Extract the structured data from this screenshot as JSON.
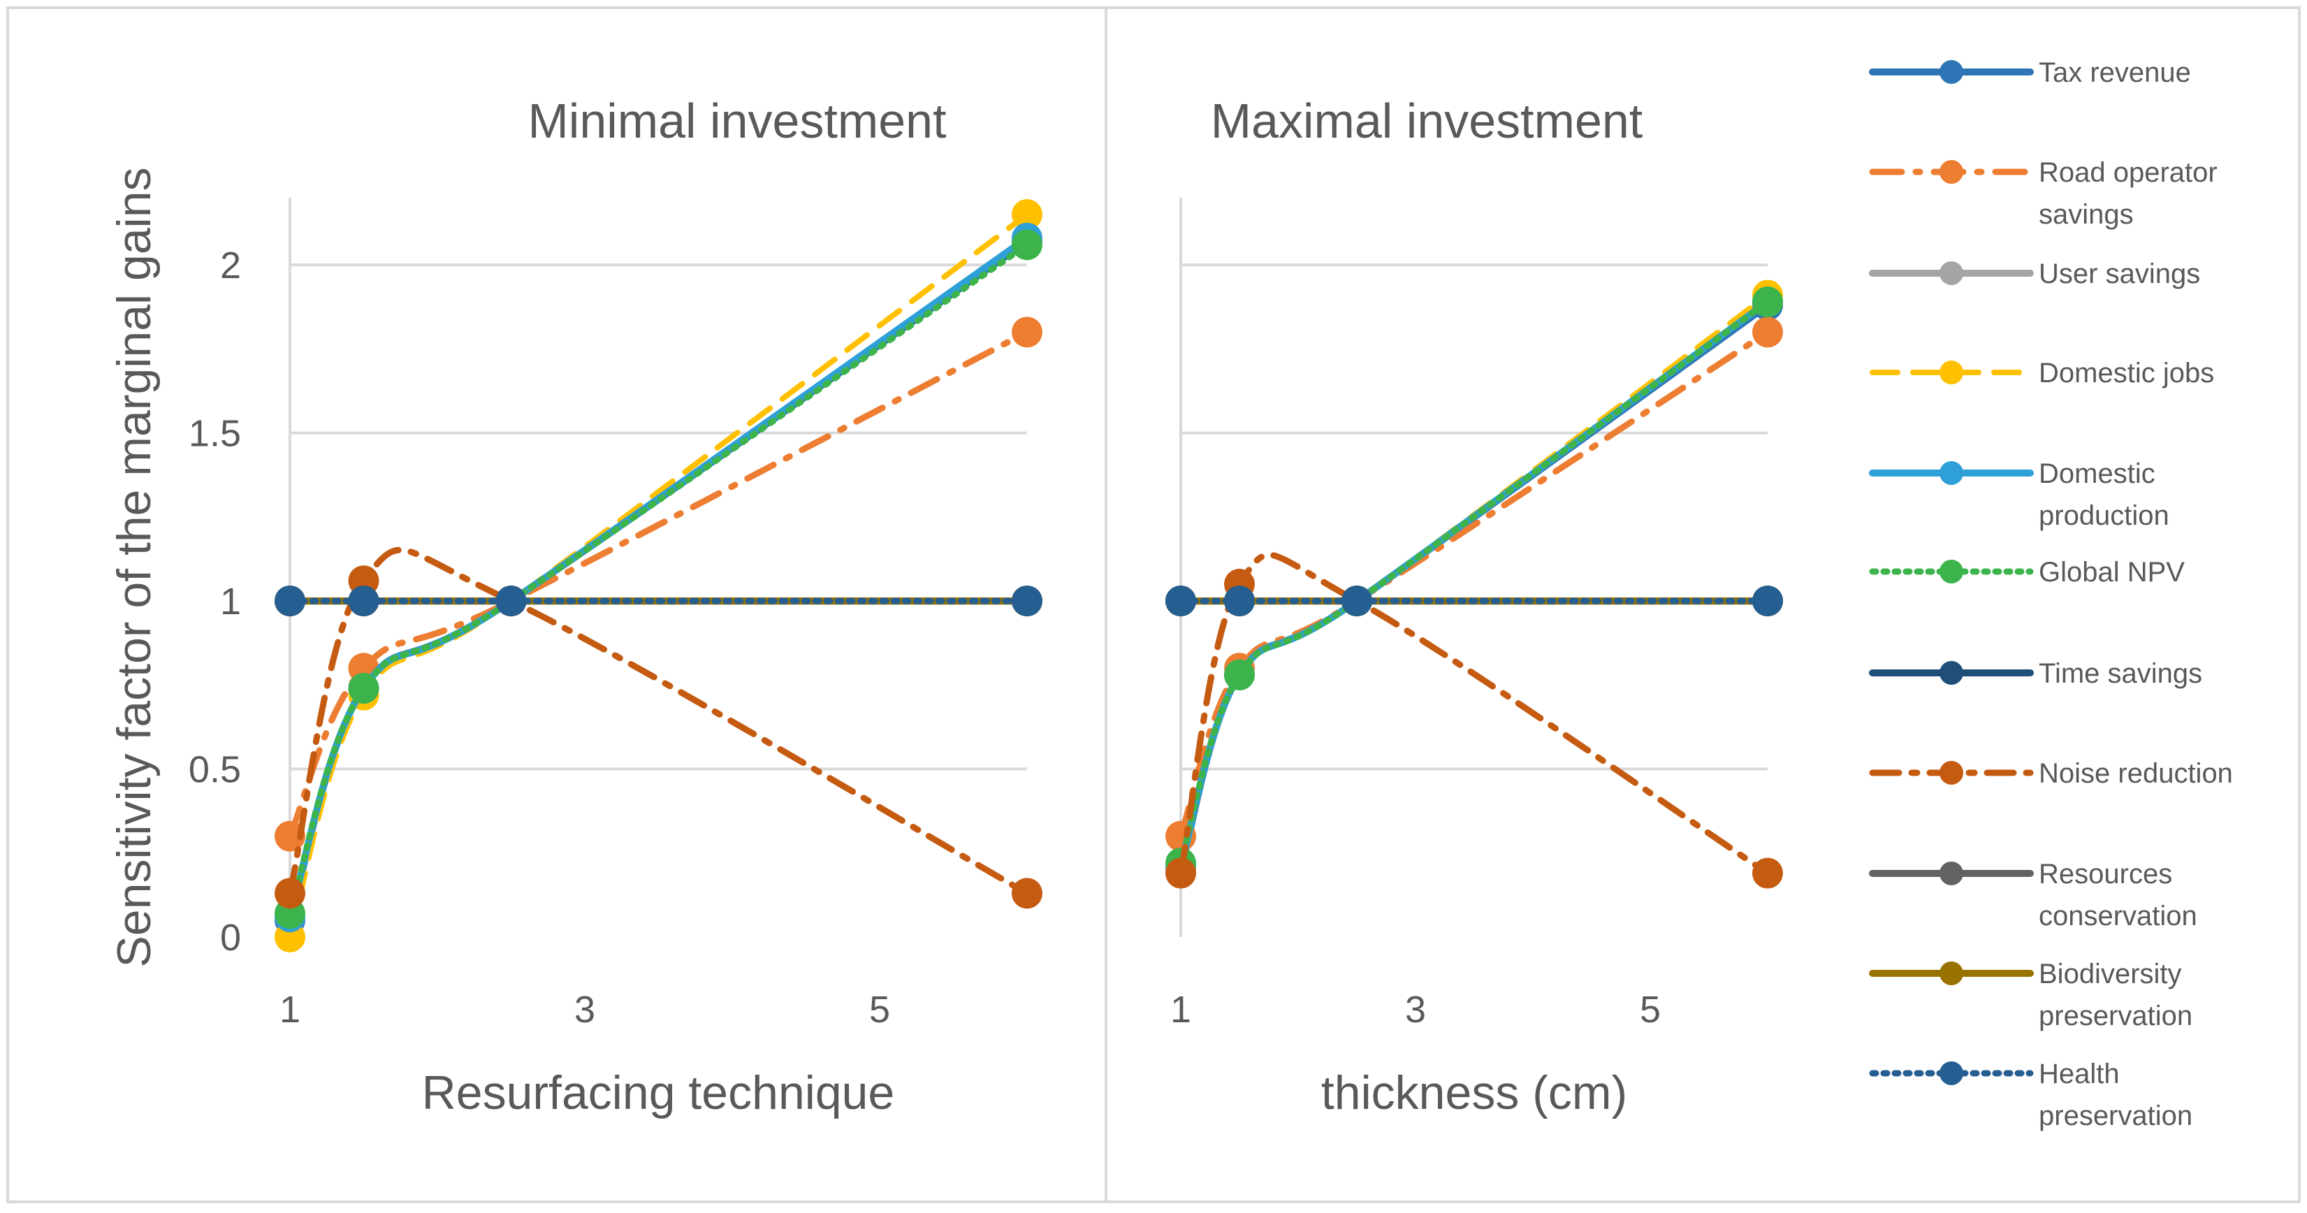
{
  "chart_data": {
    "type": "line",
    "ylabel": "Sensitivity factor of the marginal gains",
    "panels": [
      {
        "title": "Minimal investment",
        "xlabel": "Resurfacing technique",
        "x": [
          1,
          1.5,
          2.5,
          6
        ],
        "xlim": [
          1,
          6
        ],
        "xticks": [
          1,
          3,
          5
        ],
        "ylim": [
          0,
          2.2
        ],
        "yticks": [
          0,
          0.5,
          1,
          1.5,
          2
        ],
        "series": [
          {
            "name": "Tax revenue",
            "values": [
              0.05,
              0.74,
              1.0,
              2.07
            ]
          },
          {
            "name": "Road operator savings",
            "values": [
              0.3,
              0.8,
              1.0,
              1.8
            ]
          },
          {
            "name": "User savings",
            "values": [
              1.0,
              1.0,
              1.0,
              1.0
            ]
          },
          {
            "name": "Domestic jobs",
            "values": [
              0.0,
              0.72,
              1.0,
              2.15
            ]
          },
          {
            "name": "Domestic production",
            "values": [
              0.06,
              0.74,
              1.0,
              2.08
            ]
          },
          {
            "name": "Global NPV",
            "values": [
              0.07,
              0.74,
              1.0,
              2.06
            ]
          },
          {
            "name": "Time savings",
            "values": [
              1.0,
              1.0,
              1.0,
              1.0
            ]
          },
          {
            "name": "Noise reduction",
            "values": [
              0.13,
              1.06,
              1.0,
              0.13
            ]
          },
          {
            "name": "Resources conservation",
            "values": [
              1.0,
              1.0,
              1.0,
              1.0
            ]
          },
          {
            "name": "Biodiversity preservation",
            "values": [
              1.0,
              1.0,
              1.0,
              1.0
            ]
          },
          {
            "name": "Health preservation",
            "values": [
              1.0,
              1.0,
              1.0,
              1.0
            ]
          }
        ]
      },
      {
        "title": "Maximal investment",
        "xlabel": "thickness (cm)",
        "x": [
          1,
          1.5,
          2.5,
          6
        ],
        "xlim": [
          1,
          6
        ],
        "xticks": [
          1,
          3,
          5
        ],
        "ylim": [
          0,
          2.2
        ],
        "yticks": [
          0,
          0.5,
          1,
          1.5,
          2
        ],
        "series": [
          {
            "name": "Tax revenue",
            "values": [
              0.2,
              0.78,
              1.0,
              1.88
            ]
          },
          {
            "name": "Road operator savings",
            "values": [
              0.3,
              0.8,
              1.0,
              1.8
            ]
          },
          {
            "name": "User savings",
            "values": [
              1.0,
              1.0,
              1.0,
              1.0
            ]
          },
          {
            "name": "Domestic jobs",
            "values": [
              0.2,
              0.78,
              1.0,
              1.91
            ]
          },
          {
            "name": "Domestic production",
            "values": [
              0.21,
              0.78,
              1.0,
              1.89
            ]
          },
          {
            "name": "Global NPV",
            "values": [
              0.22,
              0.78,
              1.0,
              1.89
            ]
          },
          {
            "name": "Time savings",
            "values": [
              1.0,
              1.0,
              1.0,
              1.0
            ]
          },
          {
            "name": "Noise reduction",
            "values": [
              0.19,
              1.05,
              1.0,
              0.19
            ]
          },
          {
            "name": "Resources conservation",
            "values": [
              1.0,
              1.0,
              1.0,
              1.0
            ]
          },
          {
            "name": "Biodiversity preservation",
            "values": [
              1.0,
              1.0,
              1.0,
              1.0
            ]
          },
          {
            "name": "Health preservation",
            "values": [
              1.0,
              1.0,
              1.0,
              1.0
            ]
          }
        ]
      }
    ],
    "legend": {
      "placement": "right",
      "entries": [
        {
          "label": "Tax revenue",
          "color": "#2E75B6",
          "style": "solid"
        },
        {
          "label": "Road operator savings",
          "color": "#ED7D31",
          "style": "dashdot"
        },
        {
          "label": "User savings",
          "color": "#A5A5A5",
          "style": "solid"
        },
        {
          "label": "Domestic jobs",
          "color": "#FFC000",
          "style": "dashed"
        },
        {
          "label": "Domestic production",
          "color": "#2F9FD8",
          "style": "solid"
        },
        {
          "label": "Global NPV",
          "color": "#3CB44B",
          "style": "dotted"
        },
        {
          "label": "Time savings",
          "color": "#1F4E79",
          "style": "solid"
        },
        {
          "label": "Noise reduction",
          "color": "#C55A11",
          "style": "longdash"
        },
        {
          "label": "Resources conservation",
          "color": "#636363",
          "style": "solid"
        },
        {
          "label": "Biodiversity preservation",
          "color": "#997300",
          "style": "solid"
        },
        {
          "label": "Health preservation",
          "color": "#255E91",
          "style": "dotted"
        }
      ]
    }
  }
}
